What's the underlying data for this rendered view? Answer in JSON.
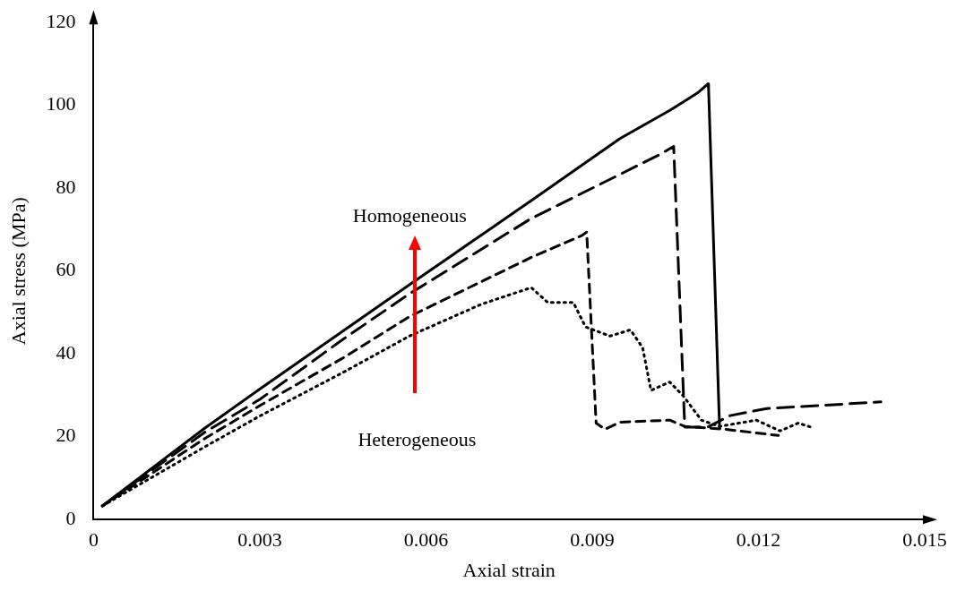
{
  "chart_data": {
    "type": "line",
    "xlabel": "Axial strain",
    "ylabel": "Axial stress (MPa)",
    "annotations": [
      "Homogeneous",
      "Heterogeneous"
    ],
    "xlim": [
      0,
      0.015
    ],
    "xticks": [
      0,
      0.003,
      0.006,
      0.009,
      0.012,
      0.015
    ],
    "ylim": [
      0,
      120
    ],
    "yticks": [
      0,
      20,
      40,
      60,
      80,
      100,
      120
    ],
    "grid": false,
    "legend": false,
    "marker": "none",
    "series": [
      {
        "color": "#000000",
        "line_style": "solid",
        "x": [
          0.00016,
          0.002,
          0.003,
          0.0045,
          0.0057,
          0.0079,
          0.0095,
          0.0104,
          0.0109,
          0.01109,
          0.0111,
          0.01129,
          0.0113
        ],
        "values": [
          3.3,
          22,
          31.5,
          45.5,
          56.7,
          77,
          92,
          98.8,
          103,
          105.2,
          104,
          25.5,
          22
        ]
      },
      {
        "color": "#000000",
        "line_style": "dashed",
        "x": [
          0.00016,
          0.002,
          0.003,
          0.0045,
          0.0057,
          0.0079,
          0.0102,
          0.01047,
          0.01067,
          0.01108,
          0.01149,
          0.01215,
          0.01421
        ],
        "values": [
          3.3,
          21,
          29,
          43.5,
          54.5,
          72.7,
          88,
          90.1,
          22.3,
          22.3,
          25.1,
          26.8,
          28.4
        ]
      },
      {
        "color": "#000000",
        "line_style": "dashed",
        "x": [
          0.00016,
          0.002,
          0.003,
          0.0045,
          0.0057,
          0.0079,
          0.0088,
          0.0089,
          0.00907,
          0.00923,
          0.0095,
          0.0104,
          0.01067,
          0.0114,
          0.01236
        ],
        "values": [
          3.3,
          19.5,
          27.5,
          39,
          49,
          63.3,
          68.5,
          69.4,
          23.3,
          21.8,
          23.5,
          24,
          22.5,
          21.8,
          20.3
        ]
      },
      {
        "color": "#000000",
        "line_style": "dotted",
        "x": [
          0.00016,
          0.002,
          0.003,
          0.0045,
          0.0057,
          0.007,
          0.0079,
          0.0082,
          0.00866,
          0.00888,
          0.00932,
          0.00969,
          0.00991,
          0.01006,
          0.0104,
          0.01064,
          0.01097,
          0.0113,
          0.01196,
          0.01239,
          0.01272,
          0.01295
        ],
        "values": [
          3.3,
          17.5,
          25,
          35.5,
          44.3,
          52,
          56,
          52.4,
          52.4,
          46.5,
          44.3,
          45.8,
          41.5,
          31.2,
          33.2,
          29.9,
          24,
          22.5,
          24,
          21.4,
          23.3,
          22.3
        ]
      }
    ]
  }
}
